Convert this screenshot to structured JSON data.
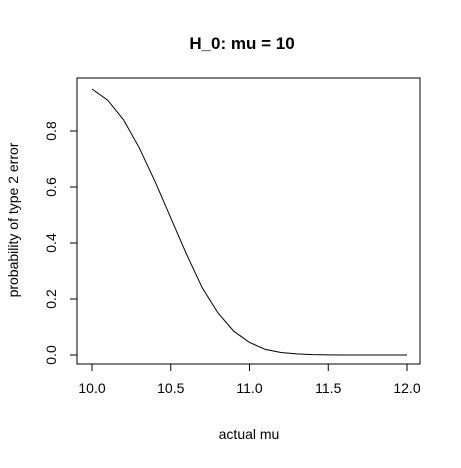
{
  "chart_data": {
    "type": "line",
    "title": "H_0: mu = 10",
    "xlabel": "actual mu",
    "ylabel": "probability of type 2 error",
    "xlim": [
      10,
      12
    ],
    "ylim": [
      0,
      0.95
    ],
    "xticks": [
      "10.0",
      "10.5",
      "11.0",
      "11.5",
      "12.0"
    ],
    "yticks": [
      "0.0",
      "0.2",
      "0.4",
      "0.6",
      "0.8"
    ],
    "grid": false,
    "legend": "none",
    "line_color": "#000000",
    "series": [
      {
        "x": [
          10.0,
          10.1,
          10.2,
          10.3,
          10.4,
          10.5,
          10.6,
          10.7,
          10.8,
          10.9,
          11.0,
          11.1,
          11.2,
          11.3,
          11.4,
          11.5,
          11.6,
          11.7,
          11.8,
          11.9,
          12.0
        ],
        "values": [
          0.95,
          0.91,
          0.84,
          0.74,
          0.62,
          0.49,
          0.36,
          0.24,
          0.15,
          0.085,
          0.045,
          0.02,
          0.009,
          0.004,
          0.0015,
          0.0005,
          0.0002,
          0.0001,
          0.0,
          0.0,
          0.0
        ]
      }
    ]
  }
}
